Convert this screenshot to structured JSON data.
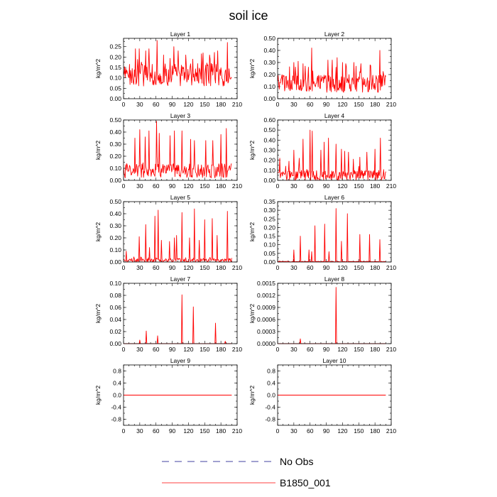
{
  "figure": {
    "title": "soil ice",
    "legend": [
      {
        "label": "No Obs",
        "color": "#4040a0",
        "dash": true
      },
      {
        "label": "B1850_001",
        "color": "#ff0000",
        "dash": false
      }
    ]
  },
  "chart_data": [
    {
      "type": "line",
      "title": "Layer 1",
      "ylabel": "kg/m^2",
      "xlim": [
        0,
        210
      ],
      "ylim": [
        0,
        0.29
      ],
      "xticks": [
        0,
        30,
        60,
        90,
        120,
        150,
        180,
        210
      ],
      "yticks": [
        0,
        0.05,
        0.1,
        0.15,
        0.2,
        0.25
      ],
      "ytick_labels": [
        "0.00",
        "0.05",
        "0.10",
        "0.15",
        "0.20",
        "0.25"
      ],
      "grid": false,
      "color": "#ff0000",
      "spikes": [
        [
          22,
          0.24
        ],
        [
          29,
          0.24
        ],
        [
          41,
          0.23
        ],
        [
          47,
          0.24
        ],
        [
          62,
          0.28
        ],
        [
          74,
          0.21
        ],
        [
          93,
          0.25
        ],
        [
          101,
          0.23
        ],
        [
          115,
          0.21
        ],
        [
          128,
          0.19
        ],
        [
          147,
          0.22
        ],
        [
          159,
          0.21
        ],
        [
          174,
          0.23
        ],
        [
          192,
          0.27
        ]
      ],
      "base": {
        "lo": 0.06,
        "hi": 0.17
      }
    },
    {
      "type": "line",
      "title": "Layer 2",
      "ylabel": "kg/m^2",
      "xlim": [
        0,
        210
      ],
      "ylim": [
        0,
        0.5
      ],
      "xticks": [
        0,
        30,
        60,
        90,
        120,
        150,
        180,
        210
      ],
      "yticks": [
        0,
        0.1,
        0.2,
        0.3,
        0.4,
        0.5
      ],
      "ytick_labels": [
        "0.00",
        "0.10",
        "0.20",
        "0.30",
        "0.40",
        "0.50"
      ],
      "grid": false,
      "color": "#ff0000",
      "spikes": [
        [
          30,
          0.3
        ],
        [
          38,
          0.31
        ],
        [
          47,
          0.29
        ],
        [
          63,
          0.42
        ],
        [
          93,
          0.32
        ],
        [
          101,
          0.32
        ],
        [
          110,
          0.34
        ],
        [
          120,
          0.3
        ],
        [
          126,
          0.29
        ],
        [
          141,
          0.3
        ],
        [
          154,
          0.29
        ],
        [
          171,
          0.28
        ],
        [
          189,
          0.4
        ]
      ],
      "base": {
        "lo": 0.05,
        "hi": 0.2
      }
    },
    {
      "type": "line",
      "title": "Layer 3",
      "ylabel": "kg/m^2",
      "xlim": [
        0,
        210
      ],
      "ylim": [
        0,
        0.5
      ],
      "xticks": [
        0,
        30,
        60,
        90,
        120,
        150,
        180,
        210
      ],
      "yticks": [
        0,
        0.1,
        0.2,
        0.3,
        0.4,
        0.5
      ],
      "ytick_labels": [
        "0.00",
        "0.10",
        "0.20",
        "0.30",
        "0.40",
        "0.50"
      ],
      "grid": false,
      "color": "#ff0000",
      "spikes": [
        [
          21,
          0.35
        ],
        [
          30,
          0.42
        ],
        [
          40,
          0.36
        ],
        [
          47,
          0.41
        ],
        [
          61,
          0.49
        ],
        [
          66,
          0.39
        ],
        [
          86,
          0.37
        ],
        [
          94,
          0.41
        ],
        [
          108,
          0.41
        ],
        [
          124,
          0.34
        ],
        [
          131,
          0.33
        ],
        [
          152,
          0.33
        ],
        [
          165,
          0.33
        ],
        [
          180,
          0.38
        ],
        [
          190,
          0.43
        ]
      ],
      "base": {
        "lo": 0.02,
        "hi": 0.14
      }
    },
    {
      "type": "line",
      "title": "Layer 4",
      "ylabel": "kg/m^2",
      "xlim": [
        0,
        210
      ],
      "ylim": [
        0,
        0.6
      ],
      "xticks": [
        0,
        30,
        60,
        90,
        120,
        150,
        180,
        210
      ],
      "yticks": [
        0,
        0.1,
        0.2,
        0.3,
        0.4,
        0.5,
        0.6
      ],
      "ytick_labels": [
        "0.00",
        "0.10",
        "0.20",
        "0.30",
        "0.40",
        "0.50",
        "0.60"
      ],
      "grid": false,
      "color": "#ff0000",
      "spikes": [
        [
          4,
          0.22
        ],
        [
          21,
          0.19
        ],
        [
          30,
          0.3
        ],
        [
          40,
          0.22
        ],
        [
          47,
          0.41
        ],
        [
          60,
          0.5
        ],
        [
          64,
          0.49
        ],
        [
          80,
          0.3
        ],
        [
          86,
          0.38
        ],
        [
          94,
          0.42
        ],
        [
          108,
          0.36
        ],
        [
          118,
          0.31
        ],
        [
          124,
          0.29
        ],
        [
          131,
          0.28
        ],
        [
          140,
          0.21
        ],
        [
          152,
          0.23
        ],
        [
          165,
          0.28
        ],
        [
          180,
          0.31
        ],
        [
          190,
          0.42
        ]
      ],
      "base": {
        "lo": 0.0,
        "hi": 0.1
      }
    },
    {
      "type": "line",
      "title": "Layer 5",
      "ylabel": "kg/m^2",
      "xlim": [
        0,
        210
      ],
      "ylim": [
        0,
        0.5
      ],
      "xticks": [
        0,
        30,
        60,
        90,
        120,
        150,
        180,
        210
      ],
      "yticks": [
        0,
        0.1,
        0.2,
        0.3,
        0.4,
        0.5
      ],
      "ytick_labels": [
        "0.00",
        "0.10",
        "0.20",
        "0.30",
        "0.40",
        "0.50"
      ],
      "grid": false,
      "color": "#ff0000",
      "spikes": [
        [
          5,
          0.09
        ],
        [
          29,
          0.21
        ],
        [
          41,
          0.31
        ],
        [
          48,
          0.12
        ],
        [
          58,
          0.38
        ],
        [
          64,
          0.43
        ],
        [
          70,
          0.18
        ],
        [
          85,
          0.17
        ],
        [
          94,
          0.2
        ],
        [
          98,
          0.22
        ],
        [
          108,
          0.41
        ],
        [
          122,
          0.2
        ],
        [
          131,
          0.44
        ],
        [
          140,
          0.18
        ],
        [
          150,
          0.35
        ],
        [
          164,
          0.36
        ],
        [
          173,
          0.22
        ],
        [
          192,
          0.42
        ]
      ],
      "base": {
        "lo": 0.0,
        "hi": 0.03
      }
    },
    {
      "type": "line",
      "title": "Layer 6",
      "ylabel": "kg/m^2",
      "xlim": [
        0,
        210
      ],
      "ylim": [
        0,
        0.35
      ],
      "xticks": [
        0,
        30,
        60,
        90,
        120,
        150,
        180,
        210
      ],
      "yticks": [
        0,
        0.05,
        0.1,
        0.15,
        0.2,
        0.25,
        0.3,
        0.35
      ],
      "ytick_labels": [
        "0.00",
        "0.05",
        "0.10",
        "0.15",
        "0.20",
        "0.25",
        "0.30",
        "0.35"
      ],
      "grid": false,
      "color": "#ff0000",
      "spikes": [
        [
          30,
          0.07
        ],
        [
          42,
          0.15
        ],
        [
          58,
          0.07
        ],
        [
          63,
          0.06
        ],
        [
          69,
          0.21
        ],
        [
          87,
          0.22
        ],
        [
          95,
          0.06
        ],
        [
          108,
          0.31
        ],
        [
          118,
          0.12
        ],
        [
          129,
          0.28
        ],
        [
          152,
          0.16
        ],
        [
          170,
          0.16
        ],
        [
          189,
          0.13
        ]
      ],
      "base": {
        "lo": 0.0,
        "hi": 0.004
      }
    },
    {
      "type": "line",
      "title": "Layer 7",
      "ylabel": "kg/m^2",
      "xlim": [
        0,
        210
      ],
      "ylim": [
        0,
        0.1
      ],
      "xticks": [
        0,
        30,
        60,
        90,
        120,
        150,
        180,
        210
      ],
      "yticks": [
        0,
        0.02,
        0.04,
        0.06,
        0.08,
        0.1
      ],
      "ytick_labels": [
        "0.00",
        "0.02",
        "0.04",
        "0.06",
        "0.08",
        "0.10"
      ],
      "grid": false,
      "color": "#ff0000",
      "spikes": [
        [
          30,
          0.006
        ],
        [
          42,
          0.021
        ],
        [
          63,
          0.013
        ],
        [
          108,
          0.081
        ],
        [
          129,
          0.061
        ],
        [
          170,
          0.034
        ],
        [
          188,
          0.004
        ]
      ],
      "base": {
        "lo": 0.0,
        "hi": 0.0
      }
    },
    {
      "type": "line",
      "title": "Layer 8",
      "ylabel": "kg/m^2",
      "xlim": [
        0,
        210
      ],
      "ylim": [
        0,
        0.0015
      ],
      "xticks": [
        0,
        30,
        60,
        90,
        120,
        150,
        180,
        210
      ],
      "yticks": [
        0,
        0.0003,
        0.0006,
        0.0009,
        0.0012,
        0.0015
      ],
      "ytick_labels": [
        "0.0000",
        "0.0003",
        "0.0006",
        "0.0009",
        "0.0012",
        "0.0015"
      ],
      "grid": false,
      "color": "#ff0000",
      "spikes": [
        [
          42,
          0.00012
        ],
        [
          108,
          0.0014
        ]
      ],
      "base": {
        "lo": 0.0,
        "hi": 0.0
      }
    },
    {
      "type": "line",
      "title": "Layer 9",
      "ylabel": "kg/m^2",
      "xlim": [
        0,
        210
      ],
      "ylim": [
        -1,
        1
      ],
      "xticks": [
        0,
        30,
        60,
        90,
        120,
        150,
        180,
        210
      ],
      "yticks": [
        -0.8,
        -0.4,
        0,
        0.4,
        0.8
      ],
      "ytick_labels": [
        "-0.8",
        "-0.4",
        "0.0",
        "0.4",
        "0.8"
      ],
      "grid": false,
      "color": "#ff0000",
      "spikes": [],
      "base": {
        "lo": 0.0,
        "hi": 0.0
      }
    },
    {
      "type": "line",
      "title": "Layer 10",
      "ylabel": "kg/m^2",
      "xlim": [
        0,
        210
      ],
      "ylim": [
        -1,
        1
      ],
      "xticks": [
        0,
        30,
        60,
        90,
        120,
        150,
        180,
        210
      ],
      "yticks": [
        -0.8,
        -0.4,
        0,
        0.4,
        0.8
      ],
      "ytick_labels": [
        "-0.8",
        "-0.4",
        "0.0",
        "0.4",
        "0.8"
      ],
      "grid": false,
      "color": "#ff0000",
      "spikes": [],
      "base": {
        "lo": 0.0,
        "hi": 0.0
      }
    }
  ]
}
